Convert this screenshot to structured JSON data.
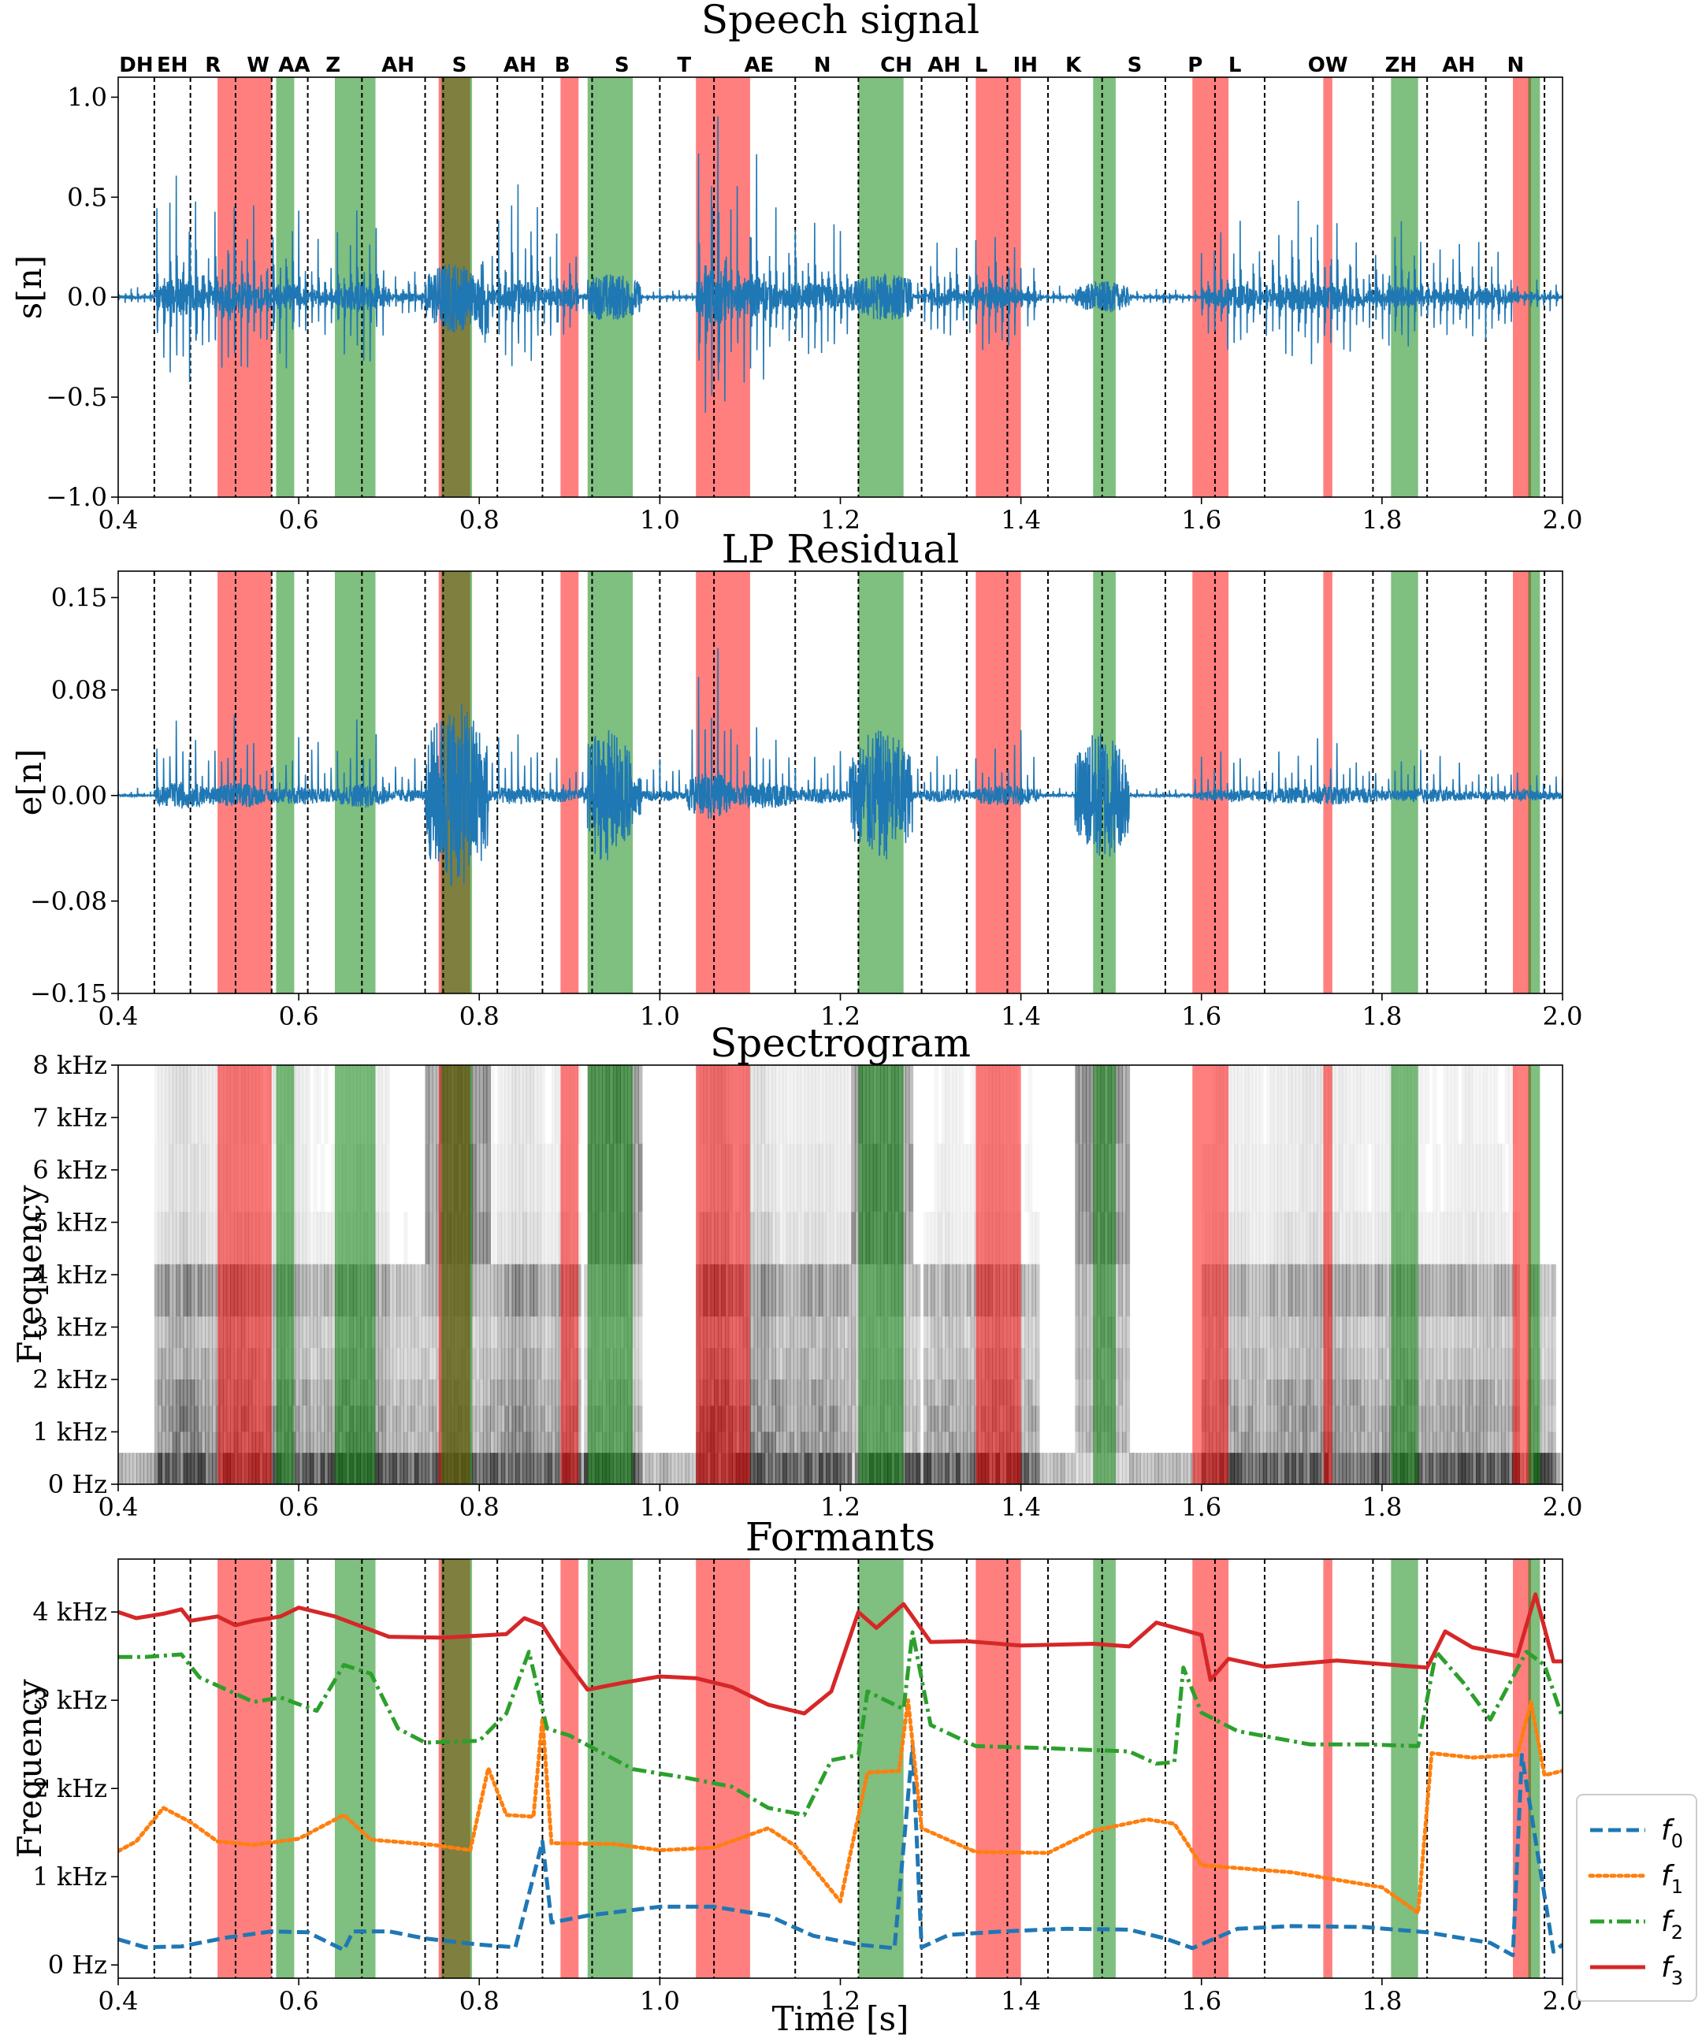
{
  "chart_data": [
    {
      "type": "line",
      "title": "Speech signal",
      "ylabel": "s[n]",
      "xlabel": "",
      "xlim": [
        0.4,
        2.0
      ],
      "ylim": [
        -1.0,
        1.1
      ],
      "xticks": [
        0.4,
        0.6,
        0.8,
        1.0,
        1.2,
        1.4,
        1.6,
        1.8,
        2.0
      ],
      "xtick_labels": [
        "0.4",
        "0.6",
        "0.8",
        "1.0",
        "1.2",
        "1.4",
        "1.6",
        "1.8",
        "2.0"
      ],
      "yticks": [
        -1.0,
        -0.5,
        0.0,
        0.5,
        1.0
      ],
      "ytick_labels": [
        "−1.0",
        "−0.5",
        "0.0",
        "0.5",
        "1.0"
      ],
      "series": [
        {
          "name": "s[n]",
          "color": "#1f77b4",
          "kind": "speech"
        }
      ]
    },
    {
      "type": "line",
      "title": "LP Residual",
      "ylabel": "e[n]",
      "xlabel": "",
      "xlim": [
        0.4,
        2.0
      ],
      "ylim": [
        -0.15,
        0.17
      ],
      "xticks": [
        0.4,
        0.6,
        0.8,
        1.0,
        1.2,
        1.4,
        1.6,
        1.8,
        2.0
      ],
      "xtick_labels": [
        "0.4",
        "0.6",
        "0.8",
        "1.0",
        "1.2",
        "1.4",
        "1.6",
        "1.8",
        "2.0"
      ],
      "yticks": [
        -0.15,
        -0.08,
        0.0,
        0.08,
        0.15
      ],
      "ytick_labels": [
        "−0.15",
        "−0.08",
        "0.00",
        "0.08",
        "0.15"
      ],
      "series": [
        {
          "name": "e[n]",
          "color": "#1f77b4",
          "kind": "residual"
        }
      ]
    },
    {
      "type": "heatmap",
      "title": "Spectrogram",
      "ylabel": "Frequency",
      "xlabel": "",
      "xlim": [
        0.4,
        2.0
      ],
      "ylim": [
        0,
        8000
      ],
      "xticks": [
        0.4,
        0.6,
        0.8,
        1.0,
        1.2,
        1.4,
        1.6,
        1.8,
        2.0
      ],
      "xtick_labels": [
        "0.4",
        "0.6",
        "0.8",
        "1.0",
        "1.2",
        "1.4",
        "1.6",
        "1.8",
        "2.0"
      ],
      "yticks": [
        0,
        1000,
        2000,
        3000,
        4000,
        5000,
        6000,
        7000,
        8000
      ],
      "ytick_labels": [
        "0 Hz",
        "1 kHz",
        "2 kHz",
        "3 kHz",
        "4 kHz",
        "5 kHz",
        "6 kHz",
        "7 kHz",
        "8 kHz"
      ],
      "colormap": "greys"
    },
    {
      "type": "line",
      "title": "Formants",
      "ylabel": "Frequency",
      "xlabel": "Time [s]",
      "xlim": [
        0.4,
        2.0
      ],
      "ylim": [
        -150,
        4600
      ],
      "xticks": [
        0.4,
        0.6,
        0.8,
        1.0,
        1.2,
        1.4,
        1.6,
        1.8,
        2.0
      ],
      "xtick_labels": [
        "0.4",
        "0.6",
        "0.8",
        "1.0",
        "1.2",
        "1.4",
        "1.6",
        "1.8",
        "2.0"
      ],
      "yticks": [
        0,
        1000,
        2000,
        3000,
        4000
      ],
      "ytick_labels": [
        "0 Hz",
        "1 kHz",
        "2 kHz",
        "3 kHz",
        "4 kHz"
      ],
      "legend": "outside right",
      "series": [
        {
          "name": "f0",
          "label_main": "f",
          "label_sub": "0",
          "color": "#1f77b4",
          "style": "dashed",
          "points": [
            [
              0.4,
              290
            ],
            [
              0.43,
              200
            ],
            [
              0.47,
              210
            ],
            [
              0.52,
              310
            ],
            [
              0.57,
              380
            ],
            [
              0.61,
              370
            ],
            [
              0.65,
              170
            ],
            [
              0.66,
              380
            ],
            [
              0.7,
              380
            ],
            [
              0.74,
              300
            ],
            [
              0.8,
              230
            ],
            [
              0.84,
              200
            ],
            [
              0.87,
              1400
            ],
            [
              0.88,
              480
            ],
            [
              0.92,
              560
            ],
            [
              1.0,
              660
            ],
            [
              1.06,
              660
            ],
            [
              1.12,
              560
            ],
            [
              1.17,
              330
            ],
            [
              1.22,
              230
            ],
            [
              1.26,
              190
            ],
            [
              1.28,
              2480
            ],
            [
              1.29,
              200
            ],
            [
              1.32,
              340
            ],
            [
              1.38,
              380
            ],
            [
              1.45,
              410
            ],
            [
              1.52,
              400
            ],
            [
              1.56,
              300
            ],
            [
              1.59,
              190
            ],
            [
              1.64,
              410
            ],
            [
              1.7,
              440
            ],
            [
              1.78,
              430
            ],
            [
              1.85,
              370
            ],
            [
              1.92,
              250
            ],
            [
              1.945,
              110
            ],
            [
              1.955,
              2380
            ],
            [
              1.99,
              150
            ],
            [
              2.0,
              230
            ]
          ]
        },
        {
          "name": "f1",
          "label_main": "f",
          "label_sub": "1",
          "color": "#ff7f0e",
          "style": "dotted",
          "points": [
            [
              0.4,
              1290
            ],
            [
              0.42,
              1400
            ],
            [
              0.45,
              1780
            ],
            [
              0.48,
              1620
            ],
            [
              0.51,
              1400
            ],
            [
              0.55,
              1360
            ],
            [
              0.6,
              1430
            ],
            [
              0.65,
              1700
            ],
            [
              0.68,
              1420
            ],
            [
              0.75,
              1360
            ],
            [
              0.79,
              1300
            ],
            [
              0.81,
              2230
            ],
            [
              0.83,
              1700
            ],
            [
              0.86,
              1680
            ],
            [
              0.87,
              2800
            ],
            [
              0.88,
              1380
            ],
            [
              0.95,
              1370
            ],
            [
              1.0,
              1300
            ],
            [
              1.06,
              1330
            ],
            [
              1.12,
              1550
            ],
            [
              1.15,
              1350
            ],
            [
              1.2,
              720
            ],
            [
              1.23,
              2180
            ],
            [
              1.265,
              2200
            ],
            [
              1.275,
              3000
            ],
            [
              1.29,
              1550
            ],
            [
              1.35,
              1280
            ],
            [
              1.43,
              1270
            ],
            [
              1.48,
              1520
            ],
            [
              1.54,
              1650
            ],
            [
              1.57,
              1600
            ],
            [
              1.6,
              1130
            ],
            [
              1.7,
              1050
            ],
            [
              1.8,
              880
            ],
            [
              1.84,
              590
            ],
            [
              1.855,
              2400
            ],
            [
              1.9,
              2350
            ],
            [
              1.95,
              2380
            ],
            [
              1.965,
              2980
            ],
            [
              1.98,
              2150
            ],
            [
              2.0,
              2200
            ]
          ]
        },
        {
          "name": "f2",
          "label_main": "f",
          "label_sub": "2",
          "color": "#2ca02c",
          "style": "dashdot",
          "points": [
            [
              0.4,
              3490
            ],
            [
              0.43,
              3490
            ],
            [
              0.47,
              3520
            ],
            [
              0.49,
              3260
            ],
            [
              0.55,
              2980
            ],
            [
              0.58,
              3030
            ],
            [
              0.62,
              2880
            ],
            [
              0.65,
              3400
            ],
            [
              0.68,
              3300
            ],
            [
              0.71,
              2680
            ],
            [
              0.74,
              2520
            ],
            [
              0.8,
              2540
            ],
            [
              0.83,
              2850
            ],
            [
              0.855,
              3550
            ],
            [
              0.875,
              2680
            ],
            [
              0.9,
              2600
            ],
            [
              0.97,
              2220
            ],
            [
              1.03,
              2120
            ],
            [
              1.08,
              2020
            ],
            [
              1.12,
              1780
            ],
            [
              1.16,
              1700
            ],
            [
              1.19,
              2320
            ],
            [
              1.22,
              2380
            ],
            [
              1.23,
              3100
            ],
            [
              1.27,
              2900
            ],
            [
              1.28,
              3770
            ],
            [
              1.3,
              2720
            ],
            [
              1.35,
              2480
            ],
            [
              1.42,
              2460
            ],
            [
              1.52,
              2420
            ],
            [
              1.55,
              2280
            ],
            [
              1.57,
              2300
            ],
            [
              1.58,
              3370
            ],
            [
              1.6,
              2860
            ],
            [
              1.64,
              2650
            ],
            [
              1.72,
              2500
            ],
            [
              1.78,
              2500
            ],
            [
              1.84,
              2480
            ],
            [
              1.86,
              3550
            ],
            [
              1.89,
              3200
            ],
            [
              1.92,
              2780
            ],
            [
              1.96,
              3550
            ],
            [
              1.98,
              3400
            ],
            [
              2.0,
              2800
            ]
          ]
        },
        {
          "name": "f3",
          "label_main": "f",
          "label_sub": "3",
          "color": "#d62728",
          "style": "solid",
          "points": [
            [
              0.4,
              4000
            ],
            [
              0.42,
              3930
            ],
            [
              0.45,
              3980
            ],
            [
              0.47,
              4030
            ],
            [
              0.48,
              3900
            ],
            [
              0.51,
              3950
            ],
            [
              0.53,
              3850
            ],
            [
              0.55,
              3900
            ],
            [
              0.58,
              3950
            ],
            [
              0.6,
              4050
            ],
            [
              0.64,
              3950
            ],
            [
              0.7,
              3720
            ],
            [
              0.76,
              3710
            ],
            [
              0.83,
              3750
            ],
            [
              0.85,
              3930
            ],
            [
              0.87,
              3850
            ],
            [
              0.89,
              3530
            ],
            [
              0.92,
              3120
            ],
            [
              0.96,
              3200
            ],
            [
              1.0,
              3270
            ],
            [
              1.04,
              3250
            ],
            [
              1.08,
              3150
            ],
            [
              1.12,
              2950
            ],
            [
              1.16,
              2850
            ],
            [
              1.19,
              3100
            ],
            [
              1.22,
              4000
            ],
            [
              1.24,
              3820
            ],
            [
              1.27,
              4090
            ],
            [
              1.3,
              3660
            ],
            [
              1.34,
              3670
            ],
            [
              1.4,
              3620
            ],
            [
              1.48,
              3640
            ],
            [
              1.52,
              3610
            ],
            [
              1.55,
              3880
            ],
            [
              1.6,
              3740
            ],
            [
              1.61,
              3230
            ],
            [
              1.63,
              3470
            ],
            [
              1.67,
              3380
            ],
            [
              1.75,
              3450
            ],
            [
              1.85,
              3370
            ],
            [
              1.87,
              3780
            ],
            [
              1.9,
              3600
            ],
            [
              1.95,
              3500
            ],
            [
              1.97,
              4200
            ],
            [
              1.99,
              3440
            ],
            [
              2.0,
              3440
            ]
          ]
        }
      ]
    }
  ],
  "phonemes": {
    "labels": [
      "DH",
      "EH",
      "R",
      "W",
      "AA",
      "Z",
      "AH",
      "S",
      "AH",
      "B",
      "S",
      "T",
      "AE",
      "N",
      "CH",
      "AH",
      "L",
      "IH",
      "K",
      "S",
      "P",
      "L",
      "OW",
      "ZH",
      "AH",
      "N"
    ],
    "label_centers": [
      0.42,
      0.46,
      0.505,
      0.555,
      0.595,
      0.638,
      0.71,
      0.778,
      0.845,
      0.892,
      0.958,
      1.027,
      1.11,
      1.18,
      1.262,
      1.315,
      1.356,
      1.405,
      1.458,
      1.526,
      1.593,
      1.637,
      1.74,
      1.821,
      1.885,
      1.948
    ],
    "boundaries": [
      0.44,
      0.48,
      0.53,
      0.57,
      0.61,
      0.67,
      0.74,
      0.76,
      0.82,
      0.87,
      0.925,
      1.0,
      1.06,
      1.15,
      1.22,
      1.29,
      1.34,
      1.385,
      1.43,
      1.49,
      1.56,
      1.615,
      1.67,
      1.79,
      1.85,
      1.915,
      1.98
    ]
  },
  "highlights": {
    "red_spans": [
      [
        0.51,
        0.57
      ],
      [
        0.755,
        0.79
      ],
      [
        0.89,
        0.91
      ],
      [
        1.04,
        1.1
      ],
      [
        1.35,
        1.4
      ],
      [
        1.59,
        1.63
      ],
      [
        1.735,
        1.745
      ],
      [
        1.945,
        1.965
      ]
    ],
    "green_spans": [
      [
        0.575,
        0.595
      ],
      [
        0.64,
        0.685
      ],
      [
        0.758,
        0.792
      ],
      [
        0.92,
        0.97
      ],
      [
        1.22,
        1.27
      ],
      [
        1.48,
        1.505
      ],
      [
        1.81,
        1.84
      ],
      [
        1.962,
        1.975
      ]
    ],
    "red_color": "#ff0000",
    "green_color": "#008000"
  }
}
